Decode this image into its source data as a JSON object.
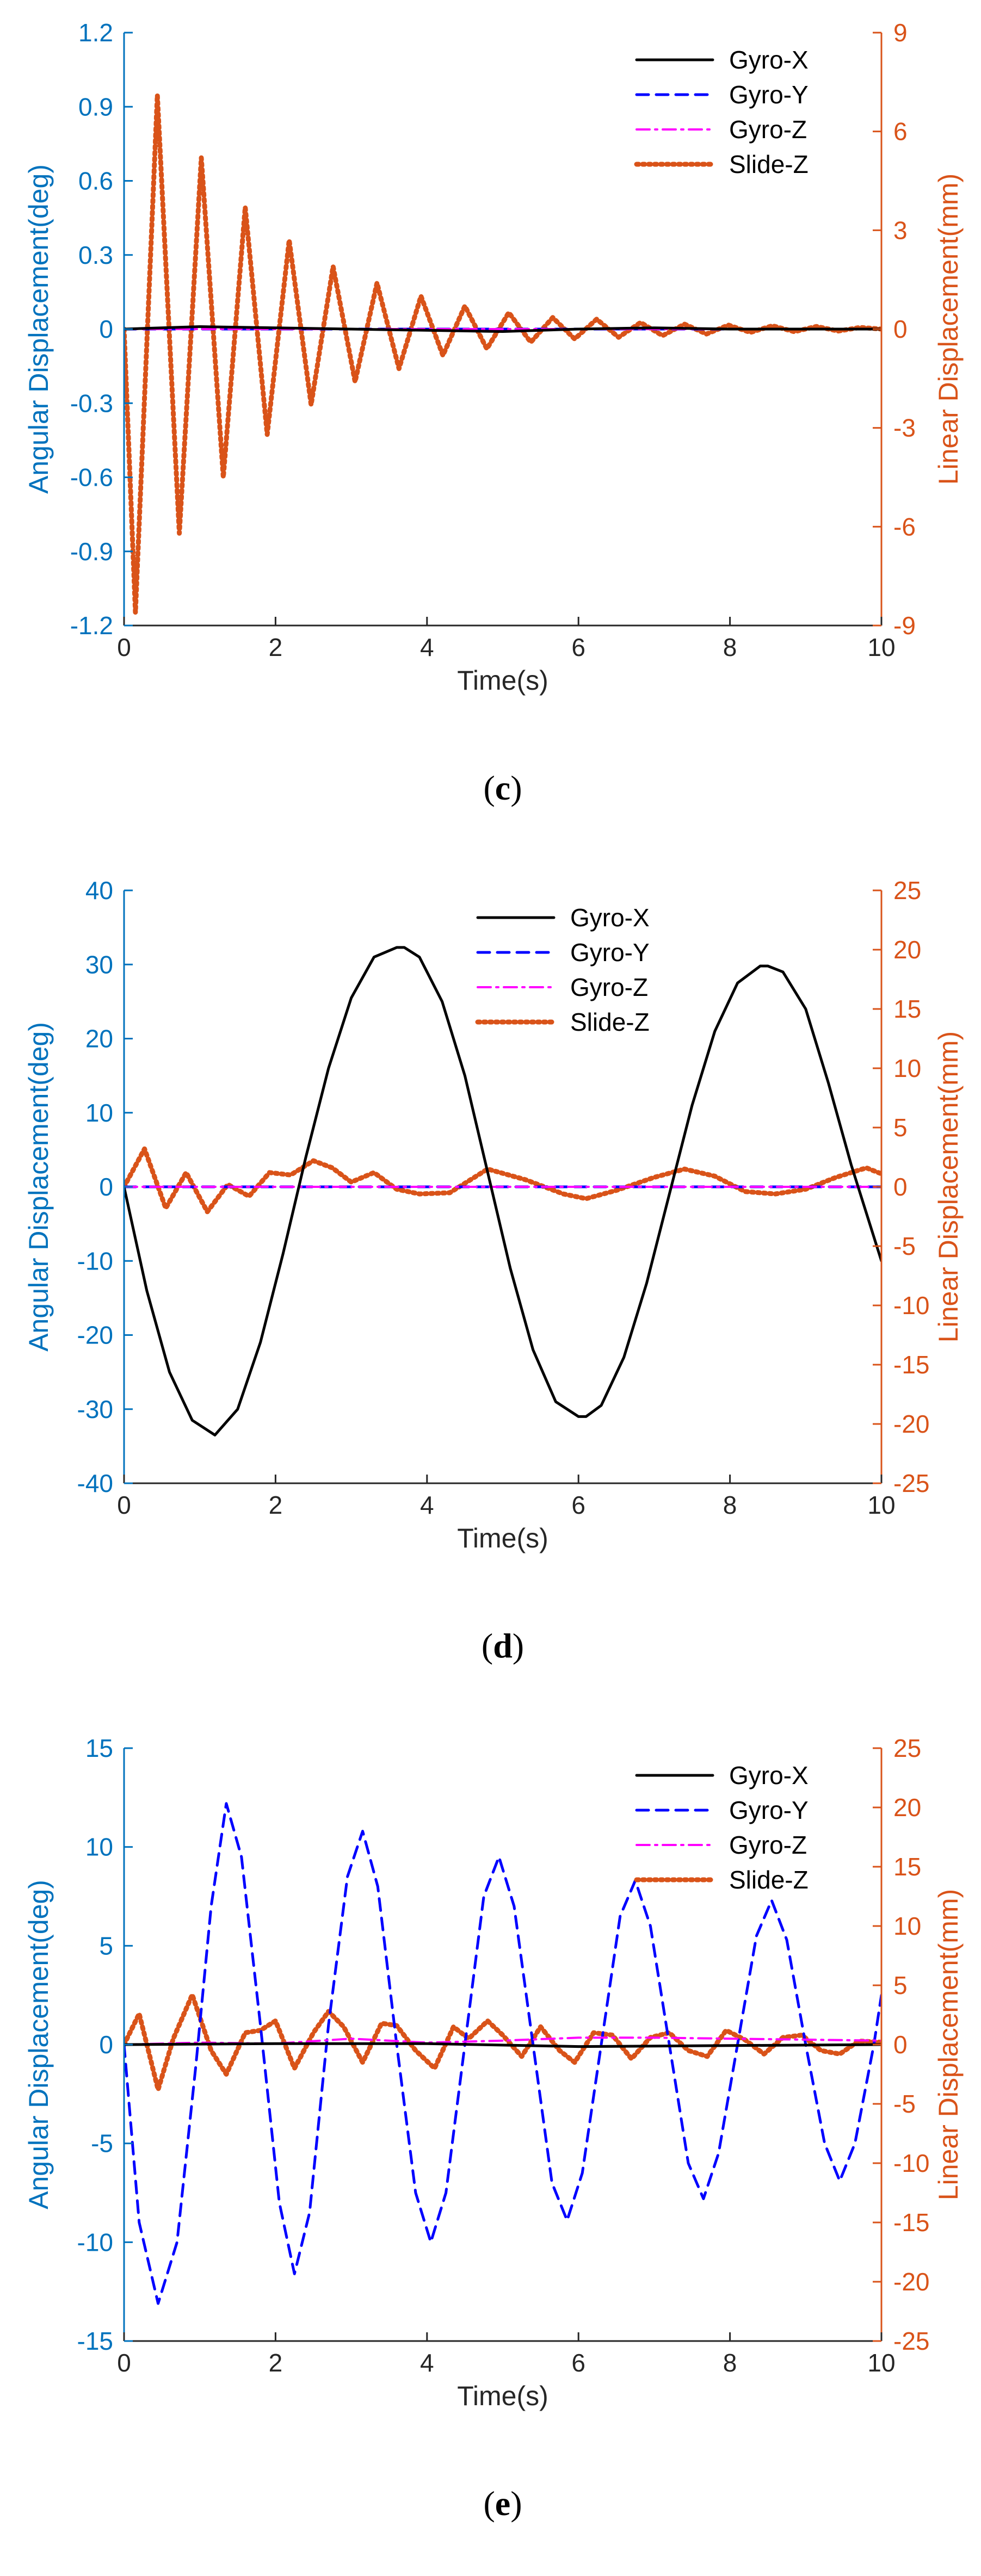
{
  "colors": {
    "left_axis": "#0072BD",
    "right_axis": "#D95319",
    "gyro_x": "#000000",
    "gyro_y": "#0000FF",
    "gyro_z": "#FF00FF",
    "slide_z": "#D95319"
  },
  "chart_data": [
    {
      "type": "line",
      "panel_label": "c",
      "caption_open": "(",
      "caption_close": ")",
      "xlabel": "Time(s)",
      "ylabel_left": "Angular Displacement(deg)",
      "ylabel_right": "Linear Displacement(mm)",
      "xlim": [
        0,
        10
      ],
      "ylim_left": [
        -1.2,
        1.2
      ],
      "ylim_right": [
        -9,
        9
      ],
      "xticks": [
        "0",
        "2",
        "4",
        "6",
        "8",
        "10"
      ],
      "yticks_left": [
        "1.2",
        "0.9",
        "0.6",
        "0.3",
        "0",
        "-0.3",
        "-0.6",
        "-0.9",
        "-1.2"
      ],
      "yticks_right": [
        "9",
        "6",
        "3",
        "0",
        "-3",
        "-6",
        "-9"
      ],
      "legend_position": "top-right",
      "legend": [
        "Gyro-X",
        "Gyro-Y",
        "Gyro-Z",
        "Slide-Z"
      ],
      "series": [
        {
          "name": "Gyro-X",
          "axis": "left",
          "style": "solid",
          "x": [
            0,
            1,
            2,
            3,
            4,
            5,
            6,
            7,
            8,
            9,
            10
          ],
          "y": [
            0,
            0.01,
            0.005,
            0,
            -0.005,
            -0.01,
            0,
            0.005,
            0,
            0,
            0
          ]
        },
        {
          "name": "Gyro-Y",
          "axis": "left",
          "style": "dashed",
          "x": [
            0,
            2,
            4,
            6,
            8,
            10
          ],
          "y": [
            0,
            0,
            0,
            0,
            0,
            0
          ]
        },
        {
          "name": "Gyro-Z",
          "axis": "left",
          "style": "dashdot",
          "x": [
            0,
            2,
            4,
            6,
            8,
            10
          ],
          "y": [
            0,
            0,
            0,
            0,
            0,
            0
          ]
        },
        {
          "name": "Slide-Z",
          "axis": "right",
          "style": "dotted",
          "x": [
            0,
            0.15,
            0.44,
            0.73,
            1.02,
            1.31,
            1.6,
            1.89,
            2.18,
            2.47,
            2.76,
            3.05,
            3.34,
            3.63,
            3.92,
            4.21,
            4.5,
            4.79,
            5.08,
            5.37,
            5.66,
            5.95,
            6.24,
            6.53,
            6.82,
            7.11,
            7.4,
            7.69,
            7.98,
            8.27,
            8.56,
            8.85,
            9.14,
            9.43,
            9.72,
            10
          ],
          "y": [
            0,
            -8.6,
            7.1,
            -6.2,
            5.2,
            -4.5,
            3.7,
            -3.2,
            2.7,
            -2.3,
            1.9,
            -1.6,
            1.4,
            -1.2,
            1.0,
            -0.8,
            0.7,
            -0.6,
            0.5,
            -0.4,
            0.35,
            -0.3,
            0.3,
            -0.25,
            0.2,
            -0.2,
            0.15,
            -0.15,
            0.12,
            -0.1,
            0.1,
            -0.08,
            0.08,
            -0.06,
            0.05,
            0
          ]
        }
      ]
    },
    {
      "type": "line",
      "panel_label": "d",
      "caption_open": "(",
      "caption_close": ")",
      "xlabel": "Time(s)",
      "ylabel_left": "Angular Displacement(deg)",
      "ylabel_right": "Linear Displacement(mm)",
      "xlim": [
        0,
        10
      ],
      "ylim_left": [
        -40,
        40
      ],
      "ylim_right": [
        -25,
        25
      ],
      "xticks": [
        "0",
        "2",
        "4",
        "6",
        "8",
        "10"
      ],
      "yticks_left": [
        "40",
        "30",
        "20",
        "10",
        "0",
        "-10",
        "-20",
        "-30",
        "-40"
      ],
      "yticks_right": [
        "25",
        "20",
        "15",
        "10",
        "5",
        "0",
        "-5",
        "-10",
        "-15",
        "-20",
        "-25"
      ],
      "legend_position": "top-center",
      "legend": [
        "Gyro-X",
        "Gyro-Y",
        "Gyro-Z",
        "Slide-Z"
      ],
      "series": [
        {
          "name": "Gyro-X",
          "axis": "left",
          "style": "solid",
          "x": [
            0,
            0.3,
            0.6,
            0.9,
            1.2,
            1.5,
            1.8,
            2.1,
            2.4,
            2.7,
            3.0,
            3.3,
            3.6,
            3.7,
            3.9,
            4.2,
            4.5,
            4.8,
            5.1,
            5.4,
            5.7,
            6.0,
            6.1,
            6.3,
            6.6,
            6.9,
            7.2,
            7.5,
            7.8,
            8.1,
            8.4,
            8.5,
            8.7,
            9.0,
            9.3,
            9.6,
            10
          ],
          "y": [
            0,
            -14,
            -25,
            -31.5,
            -33.5,
            -30,
            -21,
            -9,
            4,
            16,
            25.5,
            31,
            32.3,
            32.3,
            31,
            25,
            15,
            2,
            -11,
            -22,
            -29,
            -31,
            -31,
            -29.5,
            -23,
            -13,
            -1,
            11,
            21,
            27.5,
            29.8,
            29.8,
            29,
            24,
            14,
            3,
            -10
          ]
        },
        {
          "name": "Gyro-Y",
          "axis": "left",
          "style": "dashed",
          "x": [
            0,
            2,
            4,
            6,
            8,
            10
          ],
          "y": [
            0,
            0,
            0,
            0,
            0,
            0
          ]
        },
        {
          "name": "Gyro-Z",
          "axis": "left",
          "style": "dashdot",
          "x": [
            0,
            2,
            4,
            6,
            8,
            10
          ],
          "y": [
            0,
            0,
            0,
            0,
            0,
            0
          ]
        },
        {
          "name": "Slide-Z",
          "axis": "right",
          "style": "dotted",
          "x": [
            0,
            0.27,
            0.55,
            0.82,
            1.1,
            1.37,
            1.65,
            1.92,
            2.2,
            2.5,
            2.75,
            3.0,
            3.3,
            3.6,
            3.9,
            4.3,
            4.8,
            5.3,
            5.8,
            6.1,
            6.5,
            7.0,
            7.4,
            7.8,
            8.2,
            8.6,
            9.0,
            9.4,
            9.8,
            10
          ],
          "y": [
            0,
            3.2,
            -1.8,
            1.2,
            -2.1,
            0.2,
            -0.8,
            1.2,
            1.0,
            2.2,
            1.6,
            0.4,
            1.2,
            -0.2,
            -0.6,
            -0.5,
            1.5,
            0.6,
            -0.6,
            -1.0,
            -0.3,
            0.8,
            1.5,
            0.9,
            -0.4,
            -0.6,
            -0.2,
            0.8,
            1.6,
            1.1
          ]
        }
      ]
    },
    {
      "type": "line",
      "panel_label": "e",
      "caption_open": "(",
      "caption_close": ")",
      "xlabel": "Time(s)",
      "ylabel_left": "Angular Displacement(deg)",
      "ylabel_right": "Linear Displacement(mm)",
      "xlim": [
        0,
        10
      ],
      "ylim_left": [
        -15,
        15
      ],
      "ylim_right": [
        -25,
        25
      ],
      "xticks": [
        "0",
        "2",
        "4",
        "6",
        "8",
        "10"
      ],
      "yticks_left": [
        "15",
        "10",
        "5",
        "0",
        "-5",
        "-10",
        "-15"
      ],
      "yticks_right": [
        "25",
        "20",
        "15",
        "10",
        "5",
        "0",
        "-5",
        "-10",
        "-15",
        "-20",
        "-25"
      ],
      "legend_position": "top-right",
      "legend": [
        "Gyro-X",
        "Gyro-Y",
        "Gyro-Z",
        "Slide-Z"
      ],
      "series": [
        {
          "name": "Gyro-X",
          "axis": "left",
          "style": "solid",
          "x": [
            0,
            2,
            4,
            6,
            8,
            10
          ],
          "y": [
            0,
            0.05,
            0.05,
            -0.1,
            -0.05,
            0
          ]
        },
        {
          "name": "Gyro-Y",
          "axis": "left",
          "style": "dashed",
          "x": [
            0,
            0.2,
            0.45,
            0.7,
            0.95,
            1.15,
            1.35,
            1.55,
            1.8,
            2.05,
            2.25,
            2.45,
            2.7,
            2.95,
            3.15,
            3.35,
            3.6,
            3.85,
            4.05,
            4.25,
            4.5,
            4.75,
            4.95,
            5.15,
            5.4,
            5.65,
            5.85,
            6.05,
            6.3,
            6.55,
            6.75,
            6.95,
            7.2,
            7.45,
            7.65,
            7.85,
            8.1,
            8.35,
            8.55,
            8.75,
            9.0,
            9.25,
            9.45,
            9.65,
            9.9,
            10
          ],
          "y": [
            0,
            -9,
            -13.1,
            -10,
            -1,
            7,
            12.2,
            9.5,
            1,
            -8,
            -11.6,
            -8.5,
            1,
            8.5,
            10.8,
            8,
            0,
            -7.5,
            -10,
            -7.5,
            0,
            7.5,
            9.5,
            7,
            0,
            -7,
            -8.9,
            -6.5,
            0,
            6.5,
            8.3,
            6,
            0,
            -6,
            -7.8,
            -5.5,
            0,
            5.5,
            7.3,
            5.3,
            0,
            -5,
            -6.9,
            -5,
            0,
            2.5
          ]
        },
        {
          "name": "Gyro-Z",
          "axis": "left",
          "style": "dashdot",
          "x": [
            0,
            1,
            2,
            3,
            4,
            5,
            6,
            7,
            8,
            9,
            10
          ],
          "y": [
            0,
            0.1,
            0.05,
            0.3,
            0.1,
            0.2,
            0.35,
            0.35,
            0.3,
            0.25,
            0.2
          ]
        },
        {
          "name": "Slide-Z",
          "axis": "right",
          "style": "dotted",
          "x": [
            0,
            0.2,
            0.45,
            0.65,
            0.9,
            1.15,
            1.35,
            1.6,
            1.8,
            2.0,
            2.25,
            2.5,
            2.7,
            2.9,
            3.15,
            3.4,
            3.6,
            3.85,
            4.1,
            4.35,
            4.55,
            4.8,
            5.0,
            5.25,
            5.5,
            5.75,
            5.95,
            6.2,
            6.45,
            6.7,
            6.95,
            7.2,
            7.45,
            7.7,
            7.95,
            8.2,
            8.45,
            8.7,
            8.95,
            9.2,
            9.45,
            9.7,
            10
          ],
          "y": [
            0,
            2.6,
            -3.8,
            0.5,
            4.2,
            -0.5,
            -2.5,
            1.0,
            1.2,
            2.0,
            -2.0,
            1.0,
            2.8,
            1.5,
            -1.5,
            1.8,
            1.6,
            -0.5,
            -2.0,
            1.5,
            0.5,
            2.0,
            0.8,
            -1.0,
            1.5,
            -0.5,
            -1.5,
            1.0,
            0.8,
            -1.2,
            0.6,
            1.0,
            -0.5,
            -1.0,
            1.2,
            0.4,
            -0.8,
            0.6,
            0.8,
            -0.5,
            -0.8,
            0.3,
            0.2
          ]
        }
      ]
    }
  ]
}
